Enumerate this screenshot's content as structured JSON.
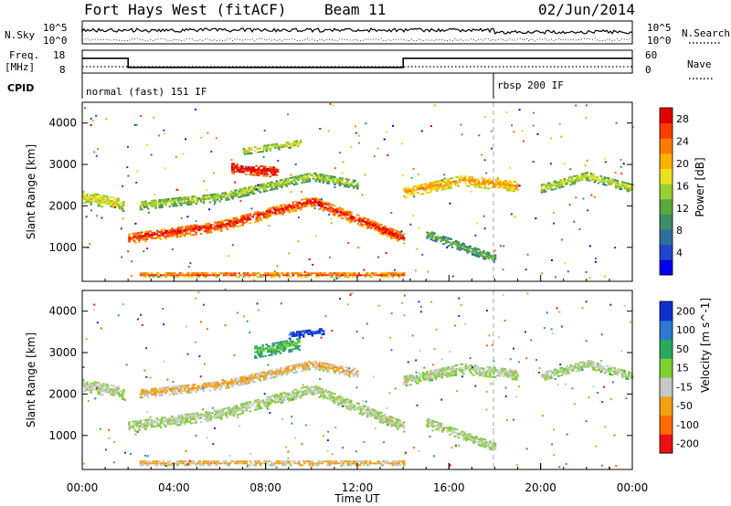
{
  "header": {
    "title": "Fort Hays West (fitACF)",
    "beam": "Beam 11",
    "date": "02/Jun/2014"
  },
  "top_panels": {
    "nsky_label": "N.Sky",
    "nsky_ticks": [
      "10^5",
      "10^0"
    ],
    "nsearch_label": "N.Search",
    "nsearch_ticks": [
      "10^5",
      "10^0"
    ],
    "freq_label_line1": "Freq.",
    "freq_label_line2": "[MHz]",
    "freq_ticks": [
      "18",
      "8"
    ],
    "nave_label": "Nave",
    "nave_ticks": [
      "60",
      "0"
    ],
    "cpid_label": "CPID",
    "cpid_segments": [
      {
        "start_hour": 0,
        "end_hour": 18,
        "text": "normal (fast) 151 IF"
      },
      {
        "start_hour": 18,
        "end_hour": 24,
        "text": "rbsp 200 IF"
      }
    ],
    "freq_steps": [
      {
        "start_hour": 0,
        "end_hour": 2,
        "value_mhz": 14.5
      },
      {
        "start_hour": 2,
        "end_hour": 14,
        "value_mhz": 10.5
      },
      {
        "start_hour": 14,
        "end_hour": 24,
        "value_mhz": 14.5
      }
    ]
  },
  "chart_data": [
    {
      "type": "heatmap",
      "name": "power",
      "xlabel": "",
      "ylabel": "Slant Range [km]",
      "xlim_hours": [
        0,
        24
      ],
      "ylim_km": [
        180,
        4500
      ],
      "yticks": [
        1000,
        2000,
        3000,
        4000
      ],
      "colorbar": {
        "label": "Power [dB]",
        "ticks": [
          "4",
          "8",
          "12",
          "16",
          "20",
          "24",
          "28"
        ],
        "colors": [
          "#0000ee",
          "#2244cc",
          "#2f6f9f",
          "#3c8c6c",
          "#5aa83c",
          "#9acd32",
          "#e8e020",
          "#ffb000",
          "#ff7a00",
          "#ff3c00",
          "#e00000"
        ]
      },
      "bands": [
        {
          "t": [
            0,
            1.8
          ],
          "r": [
            2200,
            2000
          ],
          "w": 300,
          "c": [
            0.45,
            0.6
          ]
        },
        {
          "t": [
            2,
            6,
            10,
            14
          ],
          "r": [
            1200,
            1500,
            2100,
            1200
          ],
          "w": 260,
          "c": [
            0.7,
            0.95
          ]
        },
        {
          "t": [
            2.5,
            6,
            10,
            12
          ],
          "r": [
            2000,
            2200,
            2700,
            2500
          ],
          "w": 220,
          "c": [
            0.35,
            0.55
          ]
        },
        {
          "t": [
            6.5,
            8.5
          ],
          "r": [
            2900,
            2800
          ],
          "w": 260,
          "c": [
            0.8,
            1.0
          ]
        },
        {
          "t": [
            7,
            9.5
          ],
          "r": [
            3300,
            3500
          ],
          "w": 160,
          "c": [
            0.4,
            0.6
          ]
        },
        {
          "t": [
            14,
            16.5,
            19
          ],
          "r": [
            2300,
            2600,
            2450
          ],
          "w": 260,
          "c": [
            0.55,
            0.75
          ]
        },
        {
          "t": [
            15,
            18
          ],
          "r": [
            1300,
            700
          ],
          "w": 200,
          "c": [
            0.25,
            0.45
          ]
        },
        {
          "t": [
            20,
            22,
            24
          ],
          "r": [
            2400,
            2700,
            2400
          ],
          "w": 200,
          "c": [
            0.35,
            0.6
          ]
        },
        {
          "t": [
            2.5,
            14
          ],
          "r": [
            320,
            320
          ],
          "w": 120,
          "c": [
            0.55,
            0.95
          ]
        }
      ]
    },
    {
      "type": "heatmap",
      "name": "velocity",
      "xlabel": "Time UT",
      "ylabel": "Slant Range [km]",
      "xlim_hours": [
        0,
        24
      ],
      "ylim_km": [
        180,
        4500
      ],
      "xticks": [
        "00:00",
        "04:00",
        "08:00",
        "12:00",
        "16:00",
        "20:00",
        "00:00"
      ],
      "yticks": [
        1000,
        2000,
        3000,
        4000
      ],
      "colorbar": {
        "label": "Velocity [m s^-1]",
        "ticks": [
          "200",
          "100",
          "50",
          "15",
          "-15",
          "-50",
          "-100",
          "-200"
        ],
        "colors": [
          "#1030d0",
          "#2a7ad0",
          "#2aa860",
          "#7ed030",
          "#c8c8c8",
          "#f0a010",
          "#ff6a00",
          "#ee1010"
        ]
      },
      "bands": [
        {
          "t": [
            0,
            1.8
          ],
          "r": [
            2200,
            2000
          ],
          "w": 300,
          "c": [
            0.45,
            0.55
          ]
        },
        {
          "t": [
            2,
            6,
            10,
            14
          ],
          "r": [
            1200,
            1500,
            2100,
            1200
          ],
          "w": 260,
          "c": [
            0.45,
            0.55
          ]
        },
        {
          "t": [
            2.5,
            6,
            10,
            12
          ],
          "r": [
            2000,
            2200,
            2700,
            2500
          ],
          "w": 220,
          "c": [
            0.55,
            0.7
          ]
        },
        {
          "t": [
            7.5,
            9.5
          ],
          "r": [
            3000,
            3200
          ],
          "w": 300,
          "c": [
            0.25,
            0.4
          ]
        },
        {
          "t": [
            9,
            10.5
          ],
          "r": [
            3400,
            3500
          ],
          "w": 160,
          "c": [
            0.0,
            0.15
          ]
        },
        {
          "t": [
            14,
            16.5,
            19
          ],
          "r": [
            2300,
            2600,
            2450
          ],
          "w": 260,
          "c": [
            0.45,
            0.55
          ]
        },
        {
          "t": [
            15,
            18
          ],
          "r": [
            1300,
            700
          ],
          "w": 200,
          "c": [
            0.45,
            0.55
          ]
        },
        {
          "t": [
            20,
            22,
            24
          ],
          "r": [
            2400,
            2700,
            2400
          ],
          "w": 200,
          "c": [
            0.45,
            0.55
          ]
        },
        {
          "t": [
            2.5,
            14
          ],
          "r": [
            320,
            320
          ],
          "w": 120,
          "c": [
            0.55,
            0.7
          ]
        }
      ]
    }
  ]
}
